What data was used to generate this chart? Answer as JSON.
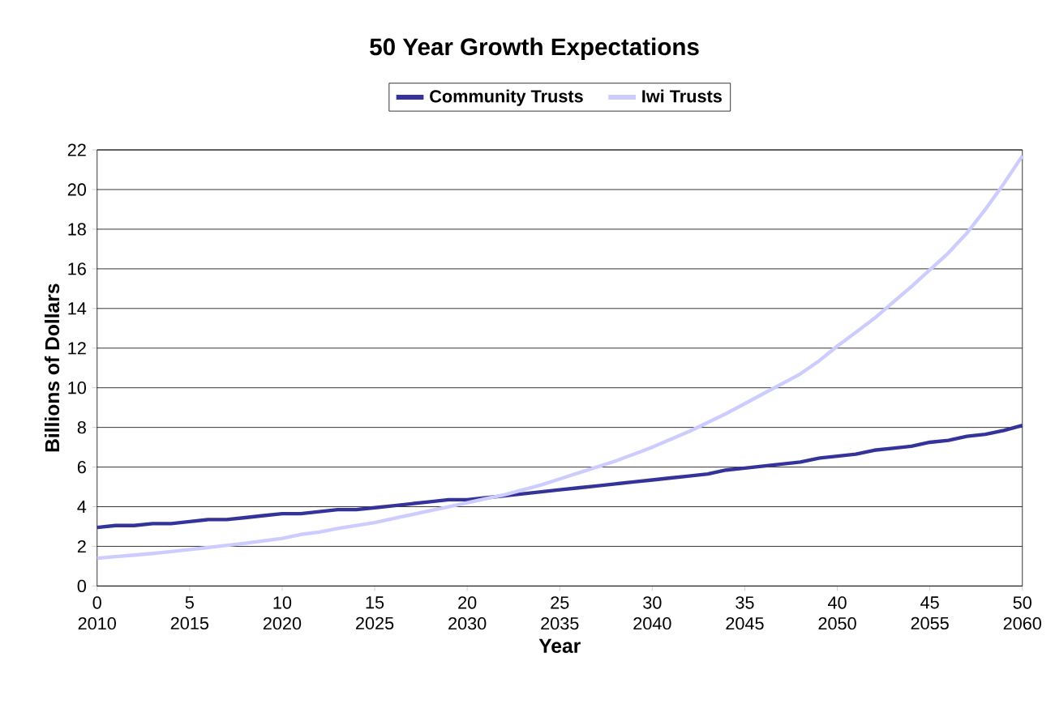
{
  "chart_data": {
    "type": "line",
    "title": "50 Year Growth Expectations",
    "xlabel": "Year",
    "ylabel": "Billions of Dollars",
    "categories": [
      "0 2010",
      null,
      null,
      null,
      null,
      "5 2015",
      null,
      null,
      null,
      null,
      "10 2020",
      null,
      null,
      null,
      null,
      "15 2025",
      null,
      null,
      null,
      null,
      "20 2030",
      null,
      null,
      null,
      null,
      "25 2035",
      null,
      null,
      null,
      null,
      "30 2040",
      null,
      null,
      null,
      null,
      "35 2045",
      null,
      null,
      null,
      null,
      "40 2050",
      null,
      null,
      null,
      null,
      "45 2055",
      null,
      null,
      null,
      null,
      "50 2060"
    ],
    "series": [
      {
        "name": "Community Trusts",
        "color": "#333399",
        "values": [
          2.95,
          3.05,
          3.05,
          3.15,
          3.15,
          3.25,
          3.35,
          3.35,
          3.45,
          3.55,
          3.65,
          3.65,
          3.75,
          3.85,
          3.85,
          3.95,
          4.05,
          4.15,
          4.25,
          4.35,
          4.35,
          4.45,
          4.55,
          4.65,
          4.75,
          4.85,
          4.95,
          5.05,
          5.15,
          5.25,
          5.35,
          5.45,
          5.55,
          5.65,
          5.85,
          5.95,
          6.05,
          6.15,
          6.25,
          6.45,
          6.55,
          6.65,
          6.85,
          6.95,
          7.05,
          7.25,
          7.35,
          7.55,
          7.65,
          7.85,
          8.1
        ]
      },
      {
        "name": "Iwi Trusts",
        "color": "#ccccff",
        "values": [
          1.4,
          1.48,
          1.56,
          1.64,
          1.74,
          1.84,
          1.94,
          2.05,
          2.16,
          2.28,
          2.4,
          2.6,
          2.72,
          2.9,
          3.05,
          3.2,
          3.4,
          3.6,
          3.8,
          4.0,
          4.2,
          4.4,
          4.6,
          4.85,
          5.1,
          5.4,
          5.7,
          6.0,
          6.3,
          6.65,
          7.0,
          7.4,
          7.8,
          8.25,
          8.7,
          9.2,
          9.7,
          10.2,
          10.7,
          11.35,
          12.1,
          12.8,
          13.5,
          14.3,
          15.1,
          15.95,
          16.8,
          17.8,
          19.0,
          20.3,
          21.7
        ]
      }
    ],
    "ylim": [
      0,
      22
    ],
    "yticks": [
      0,
      2,
      4,
      6,
      8,
      10,
      12,
      14,
      16,
      18,
      20,
      22
    ],
    "grid": "y",
    "legend": "top",
    "marker": "none",
    "line_style": "solid"
  }
}
